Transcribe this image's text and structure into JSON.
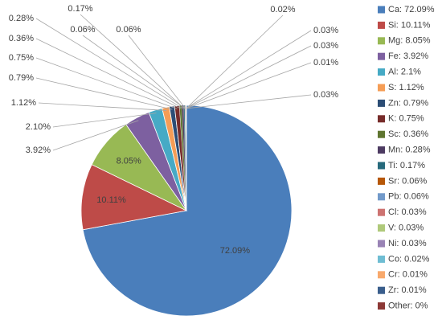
{
  "chart_data": {
    "type": "pie",
    "categories": [
      "Ca: 72.09%",
      "Si: 10.11%",
      "Mg: 8.05%",
      "Fe: 3.92%",
      "Al: 2.1%",
      "S: 1.12%",
      "Zn: 0.79%",
      "K: 0.75%",
      "Sc: 0.36%",
      "Mn: 0.28%",
      "Ti: 0.17%",
      "Sr: 0.06%",
      "Pb: 0.06%",
      "Cl: 0.03%",
      "V: 0.03%",
      "Ni: 0.03%",
      "Co: 0.02%",
      "Cr: 0.01%",
      "Zr: 0.01%",
      "Other: 0%"
    ],
    "values": [
      72.09,
      10.11,
      8.05,
      3.92,
      2.1,
      1.12,
      0.79,
      0.75,
      0.36,
      0.28,
      0.17,
      0.06,
      0.06,
      0.03,
      0.03,
      0.03,
      0.02,
      0.01,
      0.01,
      0
    ],
    "value_labels": [
      "72.09%",
      "10.11%",
      "8.05%",
      "3.92%",
      "2.10%",
      "1.12%",
      "0.79%",
      "0.75%",
      "0.36%",
      "0.28%",
      "0.17%",
      "0.06%",
      "0.06%",
      "0.03%",
      "0.03%",
      "0.03%",
      "0.02%",
      "0.01%",
      null,
      null
    ],
    "colors": [
      "#4a7ebb",
      "#be4b48",
      "#98b954",
      "#7d60a0",
      "#46aac5",
      "#f59d56",
      "#2c4d75",
      "#772c2a",
      "#5f7530",
      "#4d3b62",
      "#276a7c",
      "#b65708",
      "#729aca",
      "#cd7371",
      "#afc97a",
      "#9983b5",
      "#6fbdd3",
      "#f8a96c",
      "#3a5e8c",
      "#8c3836"
    ],
    "legend": "right"
  }
}
